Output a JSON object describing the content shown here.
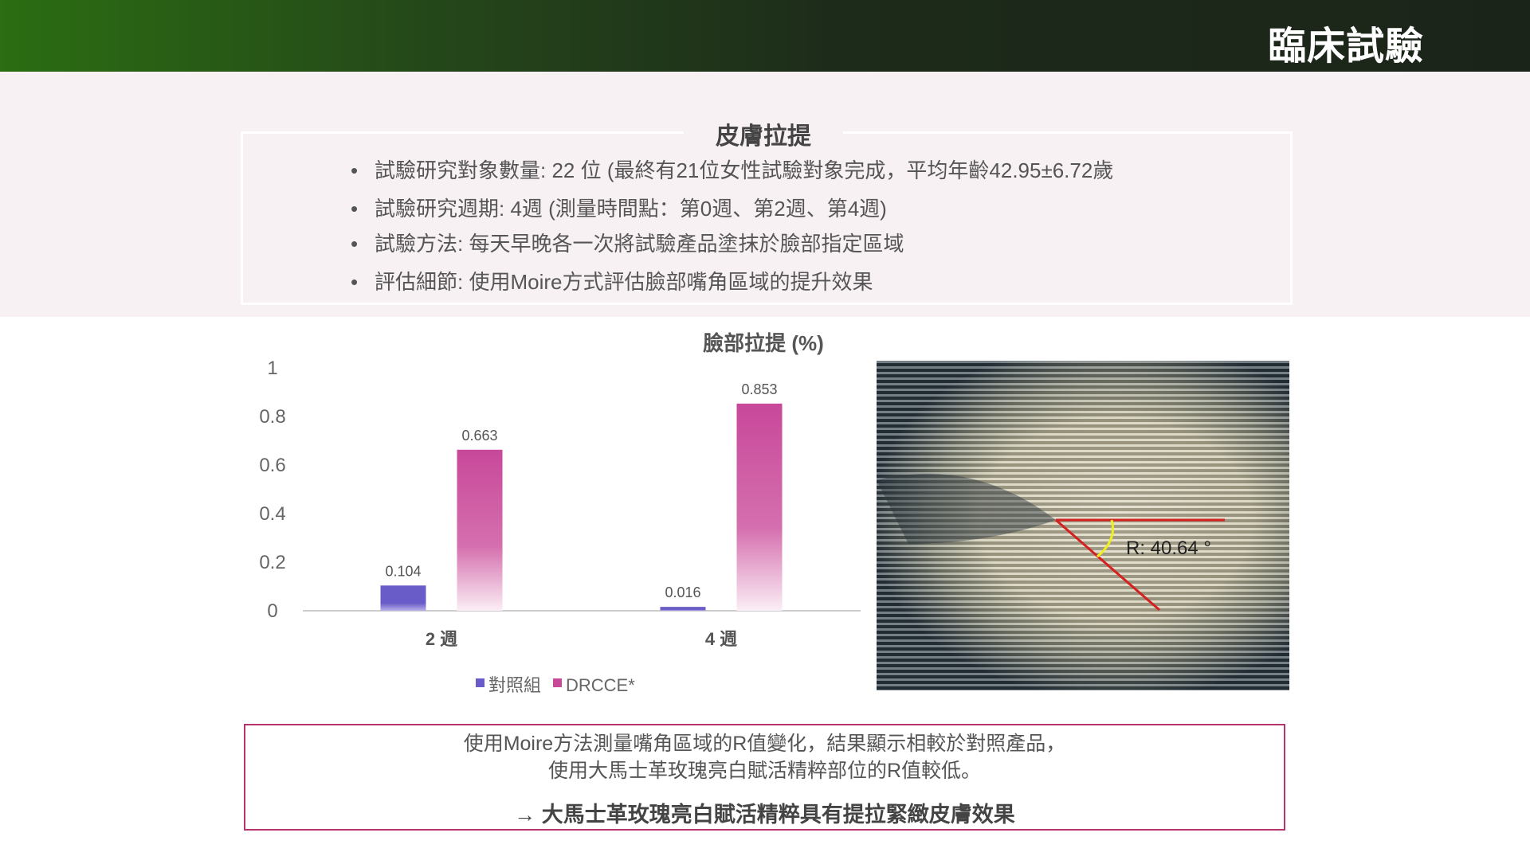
{
  "header": {
    "title": "臨床試驗"
  },
  "info": {
    "title": "皮膚拉提",
    "bullets": [
      "試驗研究對象數量: 22 位 (最終有21位女性試驗對象完成，平均年齡42.95±6.72歲",
      "試驗研究週期: 4週 (測量時間點：第0週、第2週、第4週)",
      "試驗方法: 每天早晚各一次將試驗產品塗抹於臉部指定區域",
      "評估細節: 使用Moire方式評估臉部嘴角區域的提升效果"
    ]
  },
  "chart_data": {
    "type": "bar",
    "title": "臉部拉提 (%)",
    "categories": [
      "2 週",
      "4 週"
    ],
    "series": [
      {
        "name": "對照組",
        "values": [
          0.104,
          0.016
        ],
        "color": "#6a5cc8",
        "labels": [
          "0.104",
          "0.016"
        ]
      },
      {
        "name": "DRCCE*",
        "values": [
          0.663,
          0.853
        ],
        "color": "#c8489a",
        "labels": [
          "0.663",
          "0.853"
        ]
      }
    ],
    "ylim": [
      0,
      1
    ],
    "yticks": [
      "0",
      "0.2",
      "0.4",
      "0.6",
      "0.8",
      "1"
    ],
    "grid": false,
    "legend": "bottom"
  },
  "photo": {
    "label": "R: 40.64 °"
  },
  "conclusion": {
    "line1": "使用Moire方法測量嘴角區域的R值變化，結果顯示相較於對照產品，",
    "line2": "使用大馬士革玫瑰亮白賦活精粹部位的R值較低。",
    "line3": "→ 大馬士革玫瑰亮白賦活精粹具有提拉緊緻皮膚效果"
  }
}
